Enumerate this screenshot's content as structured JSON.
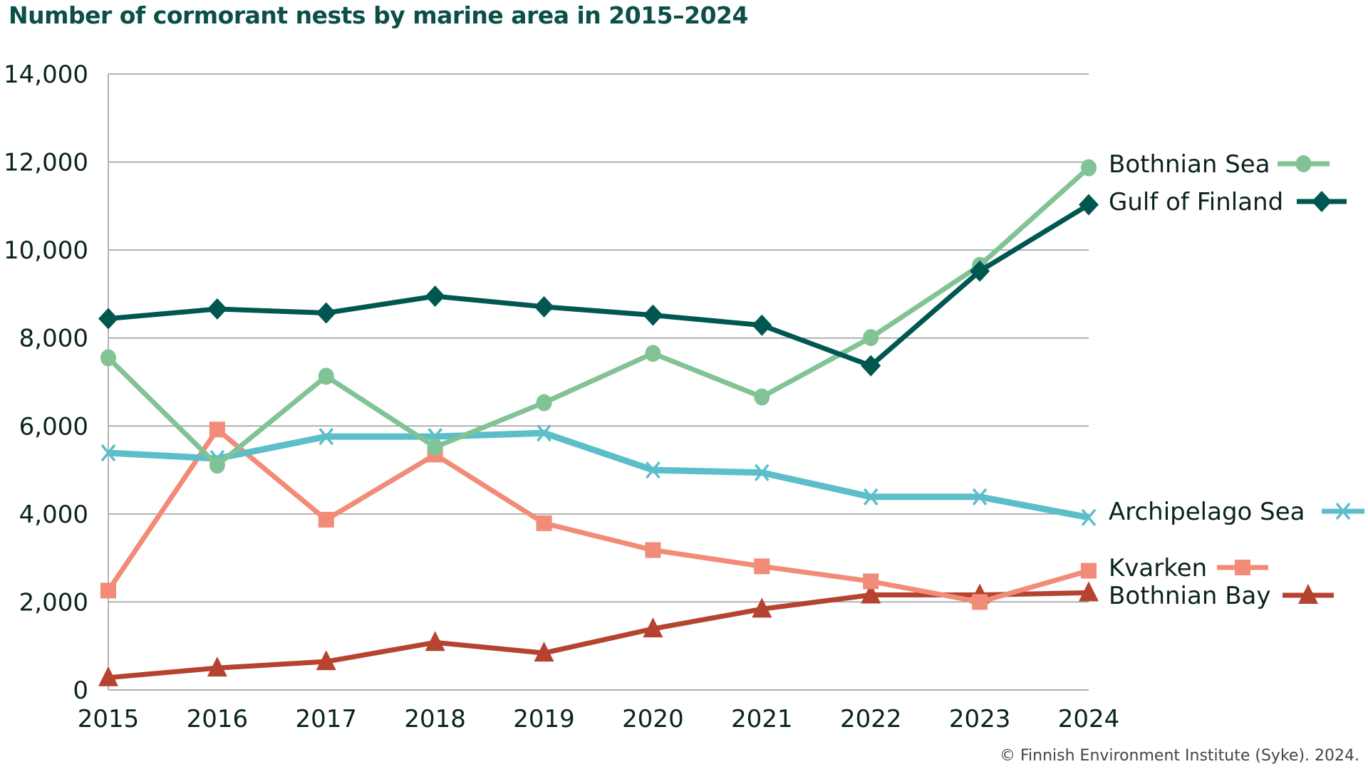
{
  "chart_data": {
    "type": "line",
    "title": "Number of cormorant nests by marine area in 2015–2024",
    "xlabel": "",
    "ylabel": "",
    "x": [
      "2015",
      "2016",
      "2017",
      "2018",
      "2019",
      "2020",
      "2021",
      "2022",
      "2023",
      "2024"
    ],
    "ylim": [
      0,
      14000
    ],
    "yticks": [
      0,
      2000,
      4000,
      6000,
      8000,
      10000,
      12000,
      14000
    ],
    "ytick_labels": [
      "0",
      "2,000",
      "4,000",
      "6,000",
      "8,000",
      "10,000",
      "12,000",
      "14,000"
    ],
    "grid": "horizontal",
    "legend": "right, inline at line ends",
    "series": [
      {
        "name": "Bothnian Sea",
        "color": "#82c396",
        "marker": "circle",
        "values": [
          7550,
          5110,
          7130,
          5520,
          6530,
          7650,
          6660,
          8010,
          9650,
          11870
        ]
      },
      {
        "name": "Gulf of Finland",
        "color": "#00574f",
        "marker": "diamond",
        "values": [
          8440,
          8660,
          8570,
          8950,
          8710,
          8520,
          8290,
          7370,
          9520,
          11030
        ]
      },
      {
        "name": "Archipelago Sea",
        "color": "#5bbec9",
        "marker": "x",
        "values": [
          5390,
          5260,
          5760,
          5760,
          5840,
          5000,
          4940,
          4390,
          4390,
          3920
        ]
      },
      {
        "name": "Kvarken",
        "color": "#f28b77",
        "marker": "square",
        "values": [
          2260,
          5920,
          3870,
          5350,
          3790,
          3180,
          2810,
          2470,
          2000,
          2710
        ]
      },
      {
        "name": "Bothnian Bay",
        "color": "#b5432f",
        "marker": "triangle",
        "values": [
          280,
          500,
          645,
          1080,
          840,
          1390,
          1840,
          2160,
          2160,
          2210
        ]
      }
    ]
  },
  "source": "© Finnish Environment Institute (Syke). 2024."
}
